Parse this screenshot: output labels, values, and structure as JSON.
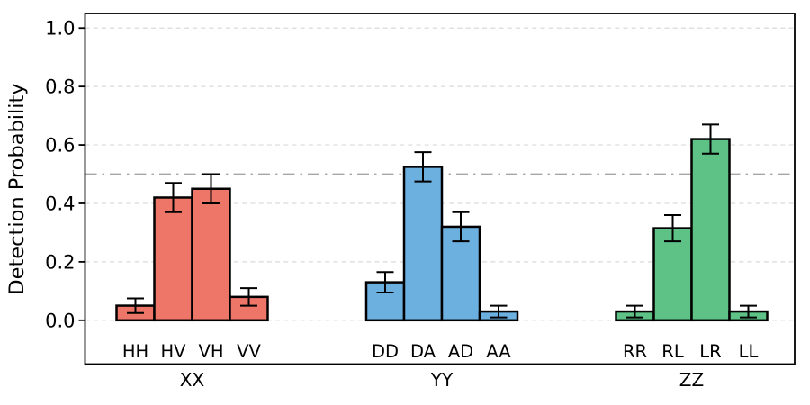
{
  "figure": {
    "background": "#ffffff"
  },
  "chart_data": {
    "type": "bar",
    "title": "",
    "xlabel": "",
    "ylabel": "Detection Probability",
    "ylim": [
      -0.15,
      1.05
    ],
    "ytick_values": [
      0.0,
      0.2,
      0.4,
      0.6,
      0.8,
      1.0
    ],
    "yticks": [
      "0.0",
      "0.2",
      "0.4",
      "0.6",
      "0.8",
      "1.0"
    ],
    "grid": "horizontal-dashed",
    "grid_color": "#d9d9d9",
    "axis_color": "#000000",
    "error_bar_color": "#000000",
    "reference_line": {
      "value": 0.5,
      "style": "dash-dot",
      "color": "#a6a6a6"
    },
    "legend": "none",
    "groups": [
      {
        "label": "XX",
        "bar_color": "#ed7668",
        "edge_color": "#000000",
        "categories": [
          "HH",
          "HV",
          "VH",
          "VV"
        ],
        "values": [
          0.05,
          0.42,
          0.45,
          0.08
        ],
        "errors": [
          0.025,
          0.05,
          0.05,
          0.03
        ]
      },
      {
        "label": "YY",
        "bar_color": "#6cb0e0",
        "edge_color": "#000000",
        "categories": [
          "DD",
          "DA",
          "AD",
          "AA"
        ],
        "values": [
          0.13,
          0.525,
          0.32,
          0.03
        ],
        "errors": [
          0.035,
          0.05,
          0.05,
          0.02
        ]
      },
      {
        "label": "ZZ",
        "bar_color": "#5ec287",
        "edge_color": "#000000",
        "categories": [
          "RR",
          "RL",
          "LR",
          "LL"
        ],
        "values": [
          0.03,
          0.315,
          0.62,
          0.03
        ],
        "errors": [
          0.02,
          0.045,
          0.05,
          0.02
        ]
      }
    ]
  }
}
